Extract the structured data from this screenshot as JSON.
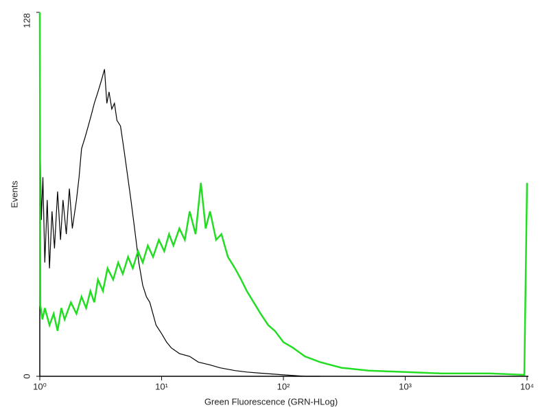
{
  "chart_data": {
    "type": "line",
    "xscale": "log",
    "x_label": "Green Fluorescence (GRN-HLog)",
    "y_label": "Events",
    "xlim": [
      1,
      10000
    ],
    "xticks": [
      {
        "value": 1,
        "label": "10⁰"
      },
      {
        "value": 10,
        "label": "10¹"
      },
      {
        "value": 100,
        "label": "10²"
      },
      {
        "value": 1000,
        "label": "10³"
      },
      {
        "value": 10000,
        "label": "10⁴"
      }
    ],
    "ylim": [
      0,
      128
    ],
    "yticks": [
      0,
      128
    ],
    "series": [
      {
        "color": "#000000",
        "x": [
          1,
          1.03,
          1.06,
          1.1,
          1.15,
          1.2,
          1.26,
          1.32,
          1.4,
          1.48,
          1.55,
          1.65,
          1.75,
          1.85,
          2.0,
          2.1,
          2.2,
          2.35,
          2.5,
          2.65,
          2.8,
          3.0,
          3.2,
          3.4,
          3.55,
          3.7,
          3.9,
          4.1,
          4.3,
          4.6,
          4.9,
          5.2,
          5.6,
          6.0,
          6.5,
          7.0,
          7.5,
          8.0,
          9.0,
          10,
          11,
          12,
          14,
          17,
          20,
          25,
          30,
          40,
          50,
          70,
          100,
          150,
          200
        ],
        "values": [
          90,
          55,
          70,
          40,
          62,
          38,
          58,
          45,
          65,
          48,
          62,
          50,
          66,
          52,
          62,
          70,
          80,
          84,
          88,
          92,
          96,
          100,
          104,
          108,
          96,
          100,
          94,
          96,
          90,
          88,
          80,
          72,
          62,
          52,
          40,
          32,
          28,
          26,
          18,
          15,
          12,
          10,
          8,
          7,
          5,
          4,
          3,
          2,
          1.5,
          1,
          0.5,
          0,
          0
        ]
      },
      {
        "color": "#22dd22",
        "x": [
          1,
          1.01,
          1.05,
          1.1,
          1.2,
          1.3,
          1.4,
          1.5,
          1.6,
          1.8,
          2.0,
          2.2,
          2.4,
          2.6,
          2.8,
          3.0,
          3.3,
          3.6,
          4.0,
          4.4,
          4.8,
          5.3,
          5.8,
          6.4,
          7.0,
          7.7,
          8.5,
          9.5,
          10.5,
          11.5,
          12.5,
          14,
          15.5,
          17,
          19,
          21,
          23,
          25,
          28,
          31,
          35,
          40,
          45,
          50,
          57,
          65,
          75,
          85,
          100,
          120,
          150,
          200,
          300,
          500,
          1000,
          2000,
          5000,
          9500,
          10000
        ],
        "values": [
          128,
          25,
          20,
          24,
          18,
          22,
          16,
          24,
          20,
          26,
          22,
          28,
          24,
          30,
          26,
          34,
          30,
          38,
          34,
          40,
          36,
          42,
          38,
          44,
          40,
          46,
          42,
          48,
          44,
          50,
          46,
          52,
          48,
          58,
          50,
          68,
          52,
          58,
          48,
          50,
          42,
          38,
          34,
          30,
          26,
          22,
          18,
          16,
          12,
          10,
          7,
          5,
          3,
          2,
          1.5,
          1,
          1,
          0.5,
          68
        ]
      }
    ]
  }
}
